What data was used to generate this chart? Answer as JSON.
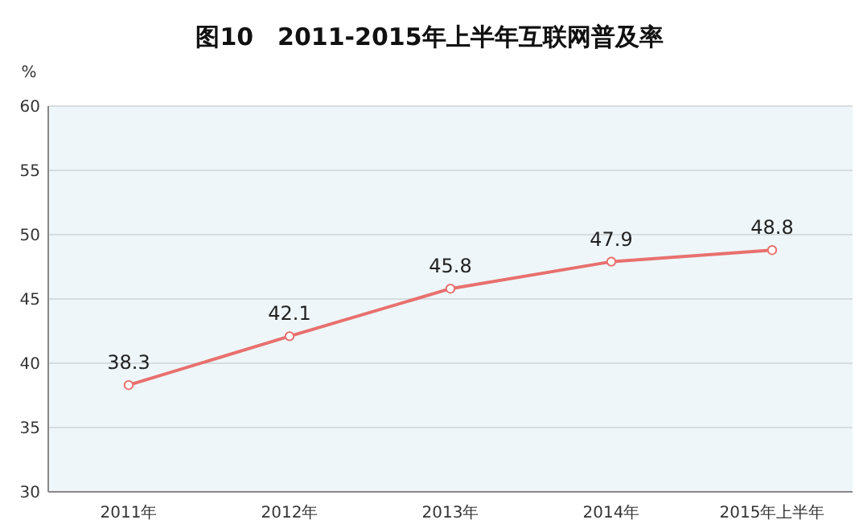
{
  "chart_data": {
    "type": "line",
    "title": "图10　2011-2015年上半年互联网普及率",
    "ylabel": "%",
    "categories": [
      "2011年",
      "2012年",
      "2013年",
      "2014年",
      "2015年上半年"
    ],
    "series": [
      {
        "color": "#e8706e",
        "values": [
          38.3,
          42.1,
          45.8,
          47.9,
          48.8
        ]
      }
    ],
    "ylim": [
      30,
      60
    ],
    "yticks": [
      30,
      35,
      40,
      45,
      50,
      55,
      60
    ],
    "grid": "y",
    "marker": "circle",
    "line_style": "solid",
    "data_labels": true
  }
}
